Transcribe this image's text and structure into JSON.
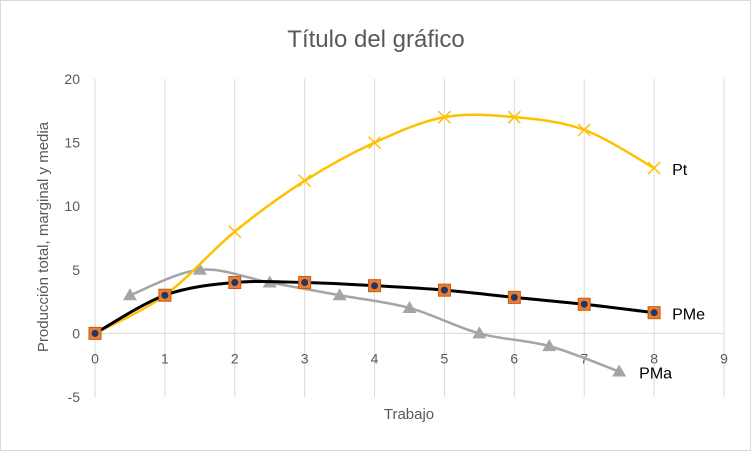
{
  "colors": {
    "pt": "#ffc000",
    "pme_line": "#000000",
    "pme_marker_fill": "#ed7d31",
    "pme_marker_inner": "#1f3864",
    "pma": "#a5a5a5",
    "grid": "#d9d9d9",
    "text": "#595959"
  },
  "chart_data": {
    "type": "scatter",
    "title": "Título del gráfico",
    "xlabel": "Trabajo",
    "ylabel": "Producción total, marginal y media",
    "xlim": [
      0,
      9
    ],
    "ylim": [
      -5,
      20
    ],
    "xticks": [
      "0",
      "1",
      "2",
      "3",
      "4",
      "5",
      "6",
      "7",
      "8",
      "9"
    ],
    "yticks": [
      "-5",
      "0",
      "5",
      "10",
      "15",
      "20"
    ],
    "grid": "vertical",
    "legend": "none",
    "smooth": true,
    "series": [
      {
        "name": "Pt",
        "marker": "x",
        "x": [
          0,
          1,
          2,
          3,
          4,
          5,
          6,
          7,
          8
        ],
        "y": [
          0,
          3,
          8,
          12,
          15,
          17,
          17,
          16,
          13
        ]
      },
      {
        "name": "PMe",
        "marker": "square",
        "x": [
          0,
          1,
          2,
          3,
          4,
          5,
          6,
          7,
          8
        ],
        "y": [
          0,
          3,
          4,
          4,
          3.75,
          3.4,
          2.83,
          2.29,
          1.63
        ]
      },
      {
        "name": "PMa",
        "marker": "triangle",
        "x": [
          0.5,
          1.5,
          2.5,
          3.5,
          4.5,
          5.5,
          6.5,
          7.5
        ],
        "y": [
          3,
          5,
          4,
          3,
          2,
          0,
          -1,
          -3
        ]
      }
    ]
  }
}
